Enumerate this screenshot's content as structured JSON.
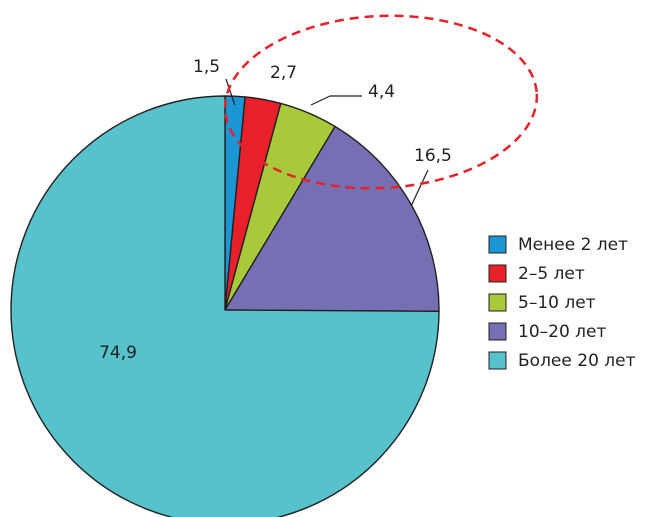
{
  "chart_data": {
    "type": "pie",
    "categories": [
      "Менее 2 лет",
      "2–5 лет",
      "5–10 лет",
      "10–20 лет",
      "Более 20 лет"
    ],
    "values": [
      1.5,
      2.7,
      4.4,
      16.5,
      74.9
    ],
    "value_labels": [
      "1,5",
      "2,7",
      "4,4",
      "16,5",
      "74,9"
    ],
    "colors": [
      "#1a96d4",
      "#e8202a",
      "#a8c93a",
      "#7570b3",
      "#55c2cc"
    ],
    "legend_position": "right",
    "annotation": {
      "shape": "dashed-ellipse",
      "color": "#e8202a",
      "highlights": [
        "Менее 2 лет",
        "2–5 лет",
        "5–10 лет",
        "10–20 лет"
      ]
    }
  }
}
